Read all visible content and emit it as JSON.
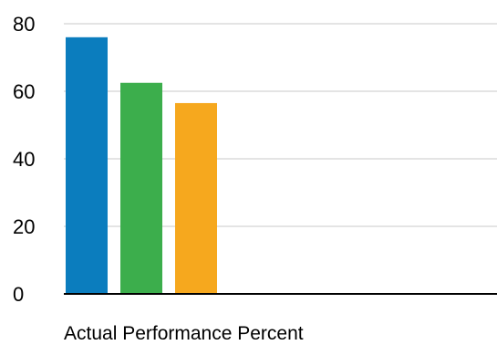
{
  "chart_data": {
    "type": "bar",
    "xlabel": "Actual Performance Percent",
    "ylabel": "",
    "ylim": [
      0,
      80
    ],
    "yticks": [
      "0",
      "20",
      "40",
      "60",
      "80"
    ],
    "grid": true,
    "series": [
      {
        "value": 76,
        "color": "#0b7dbe"
      },
      {
        "value": 62.5,
        "color": "#3cae4c"
      },
      {
        "value": 56.5,
        "color": "#f6a81e"
      }
    ]
  }
}
